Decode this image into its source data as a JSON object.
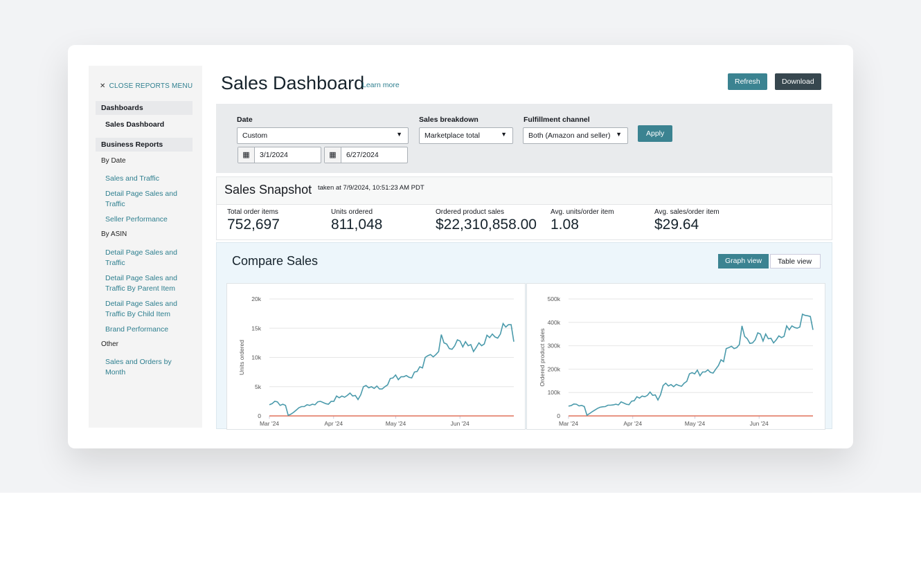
{
  "sidebar": {
    "close_label": "CLOSE REPORTS MENU",
    "dashboards_header": "Dashboards",
    "sales_dashboard": "Sales Dashboard",
    "business_reports_header": "Business Reports",
    "by_date": "By Date",
    "sales_and_traffic": "Sales and Traffic",
    "detail_page_sales_traffic": "Detail Page Sales and Traffic",
    "seller_performance": "Seller Performance",
    "by_asin": "By ASIN",
    "asin_detail_page": "Detail Page Sales and Traffic",
    "asin_parent": "Detail Page Sales and Traffic By Parent Item",
    "asin_child": "Detail Page Sales and Traffic By Child Item",
    "brand_performance": "Brand Performance",
    "other": "Other",
    "sales_orders_month": "Sales and Orders by Month"
  },
  "header": {
    "title": "Sales Dashboard",
    "learn_more": "Learn more",
    "refresh": "Refresh",
    "download": "Download"
  },
  "filters": {
    "date_label": "Date",
    "date_value": "Custom",
    "start_date": "3/1/2024",
    "end_date": "6/27/2024",
    "breakdown_label": "Sales breakdown",
    "breakdown_value": "Marketplace total",
    "fulfillment_label": "Fulfillment channel",
    "fulfillment_value": "Both (Amazon and seller)",
    "apply": "Apply"
  },
  "snapshot": {
    "title": "Sales Snapshot",
    "taken_at": "taken at 7/9/2024, 10:51:23 AM PDT",
    "kpis": [
      {
        "label": "Total order items",
        "value": "752,697"
      },
      {
        "label": "Units ordered",
        "value": "811,048"
      },
      {
        "label": "Ordered product sales",
        "value": "$22,310,858.00"
      },
      {
        "label": "Avg. units/order item",
        "value": "1.08"
      },
      {
        "label": "Avg. sales/order item",
        "value": "$29.64"
      }
    ]
  },
  "compare": {
    "title": "Compare Sales",
    "graph_view": "Graph view",
    "table_view": "Table view"
  },
  "colors": {
    "primary": "#3b8391",
    "dark": "#37474f",
    "line": "#4a9aab",
    "baseline": "#e0705a"
  },
  "chart_data": [
    {
      "type": "line",
      "ylabel": "Units ordered",
      "ylim": [
        0,
        20000
      ],
      "yticks": [
        "0",
        "5k",
        "10k",
        "15k",
        "20k"
      ],
      "xticks": [
        "Mar '24",
        "Apr '24",
        "May '24",
        "Jun '24"
      ],
      "x_range": [
        "2024-03-01",
        "2024-06-27"
      ],
      "series": [
        {
          "name": "Units ordered",
          "values": [
            1.9,
            2.1,
            2.5,
            2.4,
            1.8,
            2.0,
            1.8,
            0.1,
            0.3,
            0.6,
            1.0,
            1.4,
            1.6,
            1.6,
            1.9,
            1.8,
            2.0,
            1.9,
            2.4,
            2.5,
            2.3,
            2.1,
            2.0,
            2.5,
            2.5,
            3.4,
            3.1,
            3.4,
            3.2,
            3.5,
            3.9,
            3.4,
            3.5,
            2.8,
            3.6,
            5.0,
            5.2,
            4.8,
            5.0,
            4.7,
            5.1,
            4.6,
            4.6,
            5.0,
            5.3,
            6.4,
            6.5,
            7.0,
            6.2,
            6.7,
            6.7,
            6.9,
            6.6,
            6.5,
            7.5,
            7.6,
            8.4,
            8.2,
            10.0,
            10.3,
            10.5,
            10.1,
            10.5,
            11.0,
            13.9,
            12.5,
            12.3,
            11.5,
            11.4,
            12.0,
            13.0,
            12.8,
            11.8,
            12.7,
            12.0,
            12.2,
            11.0,
            11.7,
            12.5,
            12.0,
            12.3,
            13.8,
            13.4,
            14.0,
            13.5,
            13.3,
            14.0,
            15.8,
            15.2,
            15.6,
            15.6,
            12.7
          ],
          "unit": "thousands"
        },
        {
          "name": "Baseline",
          "values": [
            0,
            0
          ],
          "unit": "thousands"
        }
      ]
    },
    {
      "type": "line",
      "ylabel": "Ordered product sales",
      "ylim": [
        0,
        500000
      ],
      "yticks": [
        "0",
        "100k",
        "200k",
        "300k",
        "400k",
        "500k"
      ],
      "xticks": [
        "Mar '24",
        "Apr '24",
        "May '24",
        "Jun '24"
      ],
      "x_range": [
        "2024-03-01",
        "2024-06-27"
      ],
      "series": [
        {
          "name": "Ordered product sales",
          "values": [
            42,
            44,
            51,
            50,
            43,
            45,
            40,
            3,
            10,
            18,
            25,
            32,
            37,
            39,
            40,
            46,
            46,
            47,
            50,
            47,
            60,
            55,
            50,
            48,
            63,
            65,
            82,
            76,
            85,
            82,
            88,
            102,
            88,
            90,
            68,
            90,
            130,
            140,
            128,
            134,
            125,
            135,
            130,
            127,
            140,
            148,
            180,
            185,
            180,
            196,
            172,
            188,
            188,
            197,
            186,
            183,
            200,
            215,
            240,
            232,
            288,
            292,
            298,
            288,
            292,
            305,
            385,
            340,
            330,
            310,
            312,
            325,
            355,
            350,
            320,
            350,
            330,
            332,
            312,
            325,
            342,
            335,
            340,
            385,
            368,
            385,
            378,
            375,
            380,
            435,
            430,
            428,
            425,
            368
          ],
          "unit": "thousands"
        },
        {
          "name": "Baseline",
          "values": [
            0,
            0
          ],
          "unit": "thousands"
        }
      ]
    }
  ]
}
